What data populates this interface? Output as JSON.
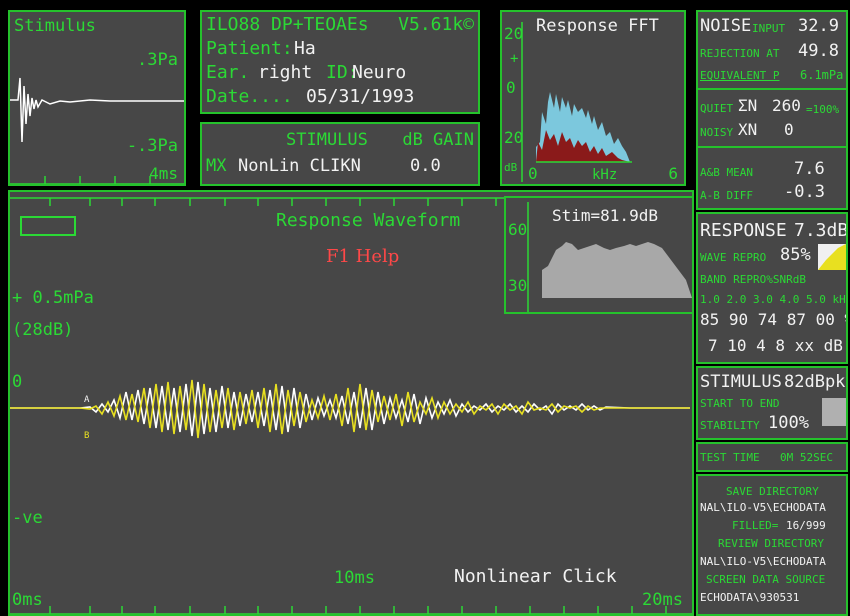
{
  "stimulus_panel": {
    "title": "Stimulus",
    "scale_top": ".3Pa",
    "scale_bottom": "-.3Pa",
    "time": "4ms"
  },
  "info_panel": {
    "device": "ILO88 DP+TEOAEs",
    "version": "V5.61k©",
    "patient_label": "Patient:",
    "patient_value": "Ha",
    "ear_label": "Ear.",
    "ear_value": "right",
    "id_label": "ID:",
    "id_value": "Neuro",
    "date_label": "Date....",
    "date_value": "05/31/1993"
  },
  "stimulus_mode": {
    "header_stimulus": "STIMULUS",
    "header_gain": "dB GAIN",
    "mx_label": "MX",
    "mode_value": "NonLin CLIKN",
    "gain_value": "0.0"
  },
  "fft_panel": {
    "title": "Response FFT",
    "y_top": "20",
    "y_zero": "0",
    "y_mid": "20",
    "db_unit": "dB",
    "x_left": "0",
    "x_unit": "kHz",
    "x_right": "6"
  },
  "noise_panel": {
    "noise_label": "NOISE",
    "input_label": "INPUT",
    "input_value": "32.9",
    "rejection_label": "REJECTION AT",
    "rejection_value": "49.8",
    "equivalent_label": "EQUIVALENT P",
    "equivalent_value": "6.1mPa",
    "quiet_label": "QUIET",
    "quiet_sym": "ΣN",
    "quiet_value": "260",
    "quiet_pct": "=100%",
    "noisy_label": "NOISY",
    "noisy_sym": "XN",
    "noisy_value": "0",
    "ab_mean_label": "A&B MEAN",
    "ab_mean_value": "7.6",
    "ab_diff_label": "A-B DIFF",
    "ab_diff_value": "-0.3"
  },
  "waveform_panel": {
    "title": "Response Waveform",
    "help": "F1 Help",
    "scale": "+ 0.5mPa",
    "scale_db": "(28dB)",
    "zero": "0",
    "neg": "-ve",
    "label_a": "A",
    "label_b": "B",
    "t_start": "0ms",
    "t_mid": "10ms",
    "t_end": "20ms",
    "mode_label": "Nonlinear Click"
  },
  "stim_spectrum": {
    "label": "Stim=81.9dB",
    "y_top": "60",
    "y_bottom": "30"
  },
  "response_panel": {
    "response_label": "RESPONSE",
    "response_value": "7.3dB",
    "wave_repro_label": "WAVE REPRO",
    "wave_repro_value": "85%",
    "band_repro_label": "BAND REPRO%SNRdB",
    "band_freqs": "1.0 2.0 3.0 4.0 5.0 kHz",
    "band_repro": "85 90 74 87 00 %",
    "band_snr": "7 10  4  8 xx dB"
  },
  "stimulus_stats": {
    "label": "STIMULUS",
    "value": "82dBpk",
    "start_end_label": "START TO END",
    "stability_label": "STABILITY",
    "stability_value": "100%"
  },
  "test_time": {
    "label": "TEST TIME",
    "value": "0M 52SEC"
  },
  "directory_panel": {
    "save_label": "SAVE DIRECTORY",
    "save_path": "NAL\\ILO-V5\\ECHODATA",
    "filled_label": "FILLED=",
    "filled_value": "16/999",
    "review_label": "REVIEW DIRECTORY",
    "review_path": "NAL\\ILO-V5\\ECHODATA",
    "source_label": "SCREEN DATA SOURCE",
    "source_path": "ECHODATA\\930531"
  }
}
